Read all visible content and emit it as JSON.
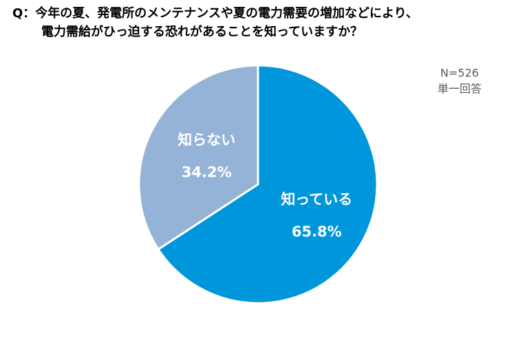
{
  "chart_data": {
    "type": "pie",
    "title": [
      "Q：今年の夏、発電所のメンテナンスや夏の電力需要の増加などにより、",
      "電力需給がひっ迫する恐れがあることを知っていますか？"
    ],
    "annotations": [
      "N=526",
      "単一回答"
    ],
    "categories": [
      "知っている",
      "知らない"
    ],
    "values": [
      65.8,
      34.2
    ],
    "value_labels": [
      "65.8%",
      "34.2%"
    ],
    "colors": [
      "#0096dc",
      "#95b3d7"
    ]
  }
}
